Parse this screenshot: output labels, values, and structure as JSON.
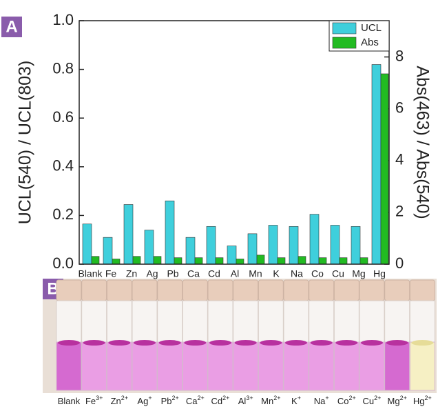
{
  "panels": {
    "a": "A",
    "b": "B"
  },
  "chart_data": {
    "type": "bar",
    "ylabel": "UCL(540) / UCL(803)",
    "y2label": "Abs(463) / Abs(540)",
    "categories": [
      "Blank",
      "Fe",
      "Zn",
      "Ag",
      "Pb",
      "Ca",
      "Cd",
      "Al",
      "Mn",
      "K",
      "Na",
      "Co",
      "Cu",
      "Mg",
      "Hg"
    ],
    "series": [
      {
        "name": "UCL",
        "color": "#3fcfdc",
        "values": [
          0.165,
          0.11,
          0.245,
          0.14,
          0.26,
          0.11,
          0.155,
          0.075,
          0.125,
          0.16,
          0.155,
          0.205,
          0.16,
          0.155,
          0.82
        ]
      },
      {
        "name": "Abs",
        "color": "#22bb22",
        "axis": "y2",
        "values": [
          0.3,
          0.2,
          0.3,
          0.3,
          0.25,
          0.25,
          0.25,
          0.2,
          0.35,
          0.25,
          0.3,
          0.25,
          0.25,
          0.25,
          7.35
        ]
      }
    ],
    "ylim": [
      0,
      1
    ],
    "yticks": [
      {
        "value": 0,
        "label": "0.0"
      },
      0.2,
      0.4,
      0.6,
      0.8,
      {
        "value": 1,
        "label": "1.0"
      }
    ],
    "y2lim": [
      0,
      9.4
    ],
    "y2ticks": [
      0,
      2,
      4,
      6,
      8
    ],
    "legend": "top-right"
  },
  "panel_b": {
    "labels": [
      {
        "symbol": "Blank"
      },
      {
        "symbol": "Fe",
        "charge": "3+"
      },
      {
        "symbol": "Zn",
        "charge": "2+"
      },
      {
        "symbol": "Ag",
        "charge": "+"
      },
      {
        "symbol": "Pb",
        "charge": "2+"
      },
      {
        "symbol": "Ca",
        "charge": "2+"
      },
      {
        "symbol": "Cd",
        "charge": "2+"
      },
      {
        "symbol": "Al",
        "charge": "3+"
      },
      {
        "symbol": "Mn",
        "charge": "2+"
      },
      {
        "symbol": "K",
        "charge": "+"
      },
      {
        "symbol": "Na",
        "charge": "+"
      },
      {
        "symbol": "Co",
        "charge": "2+"
      },
      {
        "symbol": "Cu",
        "charge": "2+"
      },
      {
        "symbol": "Mg",
        "charge": "2+"
      },
      {
        "symbol": "Hg",
        "charge": "2+"
      }
    ]
  }
}
